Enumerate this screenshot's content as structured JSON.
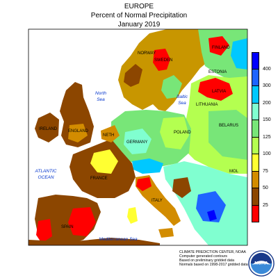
{
  "title": {
    "line1": "EUROPE",
    "line2": "Percent of Normal Precipitation",
    "line3": "January 2019"
  },
  "legend": {
    "classes": [
      {
        "label": "400",
        "color": "#0000ff"
      },
      {
        "label": "300",
        "color": "#1e64ff"
      },
      {
        "label": "200",
        "color": "#00c8ff"
      },
      {
        "label": "150",
        "color": "#80ffd0"
      },
      {
        "label": "125",
        "color": "#78e678"
      },
      {
        "label": "100",
        "color": "#b4ff50"
      },
      {
        "label": "75",
        "color": "#ffff32"
      },
      {
        "label": "50",
        "color": "#d28c00"
      },
      {
        "label": "25",
        "color": "#8c4600"
      },
      {
        "label": "",
        "color": "#ff0000"
      }
    ]
  },
  "map": {
    "water_color": "#ffffff",
    "land_labels": [
      {
        "text": "NORWAY"
      },
      {
        "text": "SWEDEN"
      },
      {
        "text": "FINLAND"
      },
      {
        "text": "ESTONIA"
      },
      {
        "text": "LATVIA"
      },
      {
        "text": "LITHUANIA"
      },
      {
        "text": "BELARUS"
      },
      {
        "text": "IRELAND"
      },
      {
        "text": "ENGLAND"
      },
      {
        "text": "NETH"
      },
      {
        "text": "GERMANY"
      },
      {
        "text": "POLAND"
      },
      {
        "text": "FRANCE"
      },
      {
        "text": "SPAIN"
      },
      {
        "text": "ITALY"
      },
      {
        "text": "MOL"
      }
    ],
    "sea_labels": [
      {
        "text": "North"
      },
      {
        "text": "Sea"
      },
      {
        "text": "Baltic"
      },
      {
        "text": "Sea"
      },
      {
        "text": "ATLANTIC"
      },
      {
        "text": "OCEAN"
      },
      {
        "text": "Mediterranean Sea"
      }
    ]
  },
  "credits": {
    "line1": "CLIMATE PREDICTION CENTER, NOAA",
    "line2": "Computer generated contours",
    "line3": "Based on preliminary gridded data",
    "line4": "Normals based on 1998-2017 gridded data"
  },
  "logo": {
    "text": "NOAA"
  }
}
